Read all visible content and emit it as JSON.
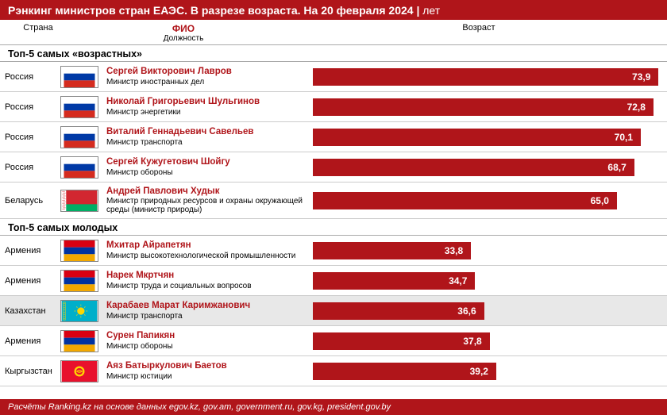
{
  "title_main": "Рэнкинг министров стран ЕАЭС. В разрезе возраста. На 20 февраля 2024",
  "title_sep": " | ",
  "title_unit": "лет",
  "col_country": "Страна",
  "col_fio": "ФИО",
  "col_position": "Должность",
  "col_age": "Возраст",
  "section_old": "Топ-5 самых «возрастных»",
  "section_young": "Топ-5 самых молодых",
  "footer": "Расчёты Ranking.kz на основе данных egov.kz, gov.am, government.ru, gov.kg, president.gov.by",
  "style": {
    "accent": "#b0151a",
    "bar_color": "#b0151a",
    "bar_text_color": "#ffffff",
    "value_max": 74,
    "title_fontsize": 14,
    "name_fontsize": 11.5,
    "position_fontsize": 10,
    "value_fontsize": 12
  },
  "old": [
    {
      "country": "Россия",
      "flag": "ru",
      "name": "Сергей Викторович Лавров",
      "position": "Министр иностранных дел",
      "value": 73.9,
      "value_txt": "73,9"
    },
    {
      "country": "Россия",
      "flag": "ru",
      "name": "Николай Григорьевич Шульгинов",
      "position": "Министр энергетики",
      "value": 72.8,
      "value_txt": "72,8"
    },
    {
      "country": "Россия",
      "flag": "ru",
      "name": "Виталий Геннадьевич Савельев",
      "position": "Министр транспорта",
      "value": 70.1,
      "value_txt": "70,1"
    },
    {
      "country": "Россия",
      "flag": "ru",
      "name": "Сергей Кужугетович Шойгу",
      "position": "Министр обороны",
      "value": 68.7,
      "value_txt": "68,7"
    },
    {
      "country": "Беларусь",
      "flag": "by",
      "name": "Андрей Павлович Худык",
      "position": "Министр природных ресурсов и охраны окружающей среды (министр природы)",
      "value": 65.0,
      "value_txt": "65,0",
      "tall": true
    }
  ],
  "young": [
    {
      "country": "Армения",
      "flag": "am",
      "name": "Мхитар Айрапетян",
      "position": "Министр высокотехнологической промышленности",
      "value": 33.8,
      "value_txt": "33,8"
    },
    {
      "country": "Армения",
      "flag": "am",
      "name": "Нарек Мкртчян",
      "position": "Министр труда и социальных вопросов",
      "value": 34.7,
      "value_txt": "34,7"
    },
    {
      "country": "Казахстан",
      "flag": "kz",
      "name": "Карабаев Марат Каримжанович",
      "position": "Министр транспорта",
      "value": 36.6,
      "value_txt": "36,6",
      "highlight": true
    },
    {
      "country": "Армения",
      "flag": "am",
      "name": "Сурен Папикян",
      "position": "Министр обороны",
      "value": 37.8,
      "value_txt": "37,8"
    },
    {
      "country": "Кыргызстан",
      "flag": "kg",
      "name": "Аяз Батыркулович Баетов",
      "position": "Министр юстиции",
      "value": 39.2,
      "value_txt": "39,2"
    }
  ]
}
